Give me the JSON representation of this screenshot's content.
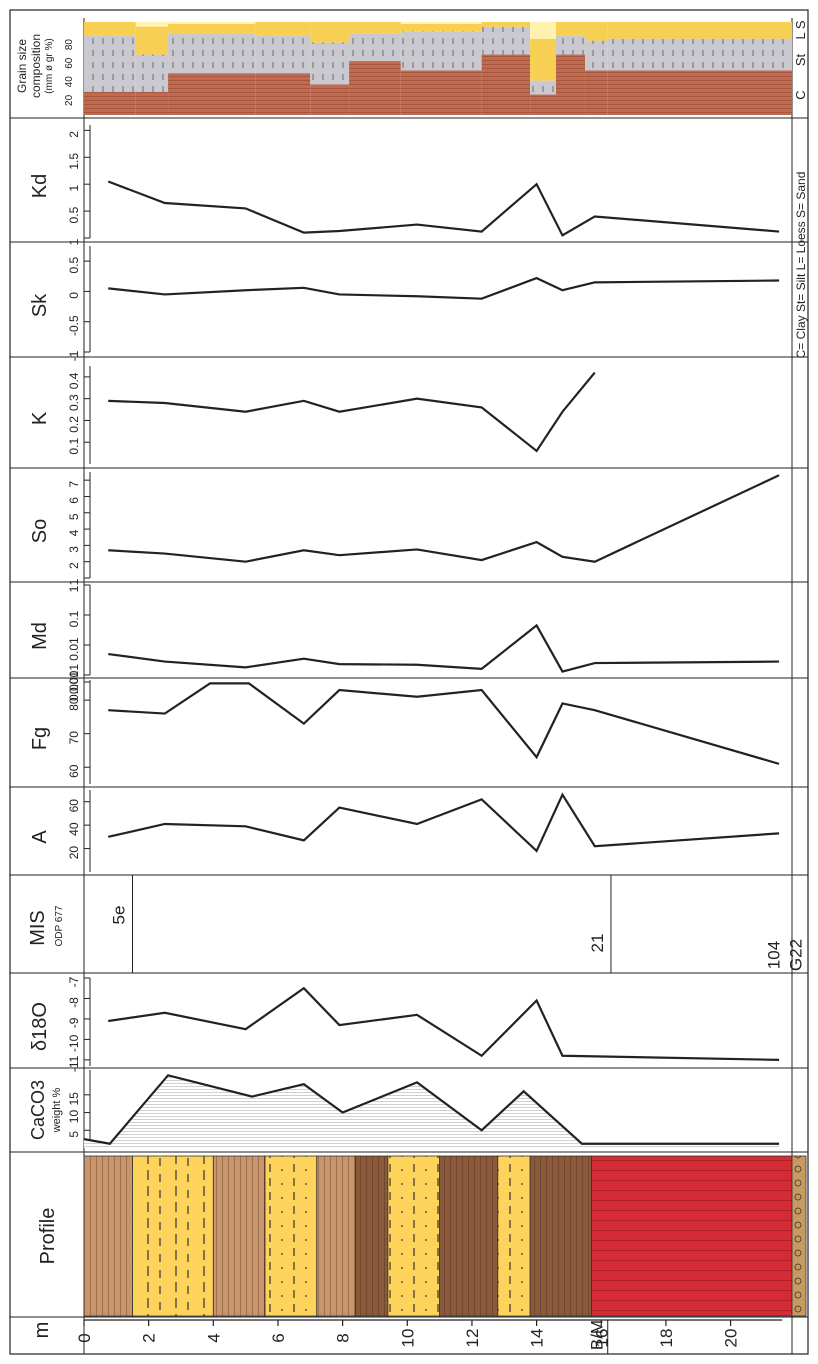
{
  "chart_data": {
    "type": "line",
    "title": "",
    "xlabel": "m",
    "depth_ticks": [
      "0",
      "2",
      "4",
      "6",
      "8",
      "10",
      "12",
      "14",
      "16",
      "18",
      "20"
    ],
    "bm_label": "B/M",
    "panels": [
      {
        "id": "kd",
        "label": "Kd",
        "ticks": [
          "2",
          "1.5",
          "1",
          "0.5",
          "1"
        ],
        "x": [
          0.75,
          2.5,
          5,
          6.8,
          7.9,
          10.3,
          12.3,
          14,
          14.8,
          15.8,
          21.5
        ],
        "y": [
          1.05,
          0.65,
          0.55,
          0.1,
          0.13,
          0.25,
          0.12,
          1.0,
          0.05,
          0.4,
          0.12
        ]
      },
      {
        "id": "sk",
        "label": "Sk",
        "ticks": [
          "0.5",
          "0",
          "-0.5",
          "-1"
        ],
        "x": [
          0.75,
          2.5,
          5,
          6.8,
          7.9,
          10.3,
          12.3,
          14,
          14.8,
          15.8,
          21.5
        ],
        "y": [
          0.05,
          -0.05,
          0.02,
          0.06,
          -0.05,
          -0.08,
          -0.12,
          0.22,
          0.02,
          0.15,
          0.18
        ]
      },
      {
        "id": "k",
        "label": "K",
        "ticks": [
          "0.1",
          "0.2",
          "0.3",
          "0.4"
        ],
        "x": [
          0.75,
          2.5,
          5,
          6.8,
          7.9,
          10.3,
          12.3,
          14,
          14.8,
          15.8
        ],
        "y": [
          0.29,
          0.28,
          0.24,
          0.29,
          0.24,
          0.3,
          0.26,
          0.06,
          0.24,
          0.42
        ]
      },
      {
        "id": "so",
        "label": "So",
        "ticks": [
          "1",
          "2",
          "3",
          "4",
          "5",
          "6",
          "7"
        ],
        "x": [
          0.75,
          2.5,
          5,
          6.8,
          7.9,
          10.3,
          12.3,
          14,
          14.8,
          15.8,
          21.5
        ],
        "y": [
          2.7,
          2.5,
          2.0,
          2.7,
          2.4,
          2.75,
          2.1,
          3.2,
          2.3,
          2.0,
          7.3
        ]
      },
      {
        "id": "md",
        "label": "Md",
        "ticks": [
          "0.001",
          "0.01",
          "0.1",
          "1"
        ],
        "x": [
          0.75,
          2.5,
          5,
          6.8,
          7.9,
          10.3,
          12.3,
          14,
          14.8,
          15.8,
          21.5
        ],
        "y": [
          0.005,
          0.0028,
          0.0018,
          0.0035,
          0.0023,
          0.0022,
          0.0016,
          0.045,
          0.0013,
          0.0025,
          0.0028
        ]
      },
      {
        "id": "fg",
        "label": "Fg",
        "ticks": [
          "60",
          "70",
          "80",
          "0.001"
        ],
        "x": [
          0.75,
          2.5,
          3.9,
          5.1,
          6.8,
          7.9,
          10.3,
          12.3,
          14,
          14.8,
          15.8,
          21.5
        ],
        "y": [
          77,
          76,
          85,
          85,
          73,
          83,
          81,
          83,
          63,
          79,
          77,
          61
        ]
      },
      {
        "id": "a",
        "label": "A",
        "ticks": [
          "20",
          "40",
          "60"
        ],
        "x": [
          0.75,
          2.5,
          5,
          6.8,
          7.9,
          10.3,
          12.3,
          14,
          14.8,
          15.8,
          21.5
        ],
        "y": [
          30,
          41,
          39,
          27,
          55,
          41,
          62,
          18,
          66,
          22,
          33
        ]
      },
      {
        "id": "mis",
        "label": "MIS",
        "sublabel": "ODP 677",
        "values": [
          "5e",
          "21",
          "104",
          "G22"
        ]
      },
      {
        "id": "d18o",
        "label": "δ18O",
        "ticks": [
          "-7",
          "-8",
          "-9",
          "-10",
          "-11"
        ],
        "x": [
          0.75,
          2.5,
          5,
          6.8,
          7.9,
          10.3,
          12.3,
          14,
          14.8,
          21.5
        ],
        "y": [
          -9.1,
          -8.7,
          -9.5,
          -7.5,
          -9.3,
          -8.8,
          -10.8,
          -8.1,
          -10.8,
          -11.0
        ]
      },
      {
        "id": "caco3",
        "label": "CaCO3",
        "sublabel": "weight %",
        "ticks": [
          "5",
          "10",
          "15"
        ],
        "x": [
          0,
          0.8,
          2.6,
          5.2,
          6.8,
          8,
          10.3,
          12.3,
          13.6,
          15.4,
          16.2,
          21.5
        ],
        "y": [
          2.5,
          1.2,
          20.5,
          14.5,
          18,
          10,
          18.5,
          5,
          16,
          1.2,
          1.2,
          1.2
        ]
      }
    ],
    "profile_label": "Profile",
    "grain": {
      "label": [
        "Grain size",
        "composition",
        "(mm ø gr %)"
      ],
      "ticks": [
        "20",
        "40",
        "60",
        "80"
      ],
      "legend_letters": [
        "C",
        "St",
        "L S"
      ],
      "legend_note": "C= Clay  St= Silt  L= Loess  S= Sand",
      "segments": [
        {
          "from": 0,
          "to": 1.6,
          "c": 25,
          "st": 60,
          "l": 15,
          "s": 0
        },
        {
          "from": 1.6,
          "to": 2.6,
          "c": 25,
          "st": 40,
          "l": 30,
          "s": 5
        },
        {
          "from": 2.6,
          "to": 5.3,
          "c": 45,
          "st": 42,
          "l": 11,
          "s": 2
        },
        {
          "from": 5.3,
          "to": 7,
          "c": 45,
          "st": 40,
          "l": 15,
          "s": 0
        },
        {
          "from": 7,
          "to": 8.2,
          "c": 33,
          "st": 45,
          "l": 22,
          "s": 0
        },
        {
          "from": 8.2,
          "to": 9.8,
          "c": 58,
          "st": 30,
          "l": 12,
          "s": 0
        },
        {
          "from": 9.8,
          "to": 12.3,
          "c": 48,
          "st": 42,
          "l": 8,
          "s": 2
        },
        {
          "from": 12.3,
          "to": 13.8,
          "c": 65,
          "st": 30,
          "l": 5,
          "s": 0
        },
        {
          "from": 13.8,
          "to": 14.6,
          "c": 22,
          "st": 15,
          "l": 45,
          "s": 18
        },
        {
          "from": 14.6,
          "to": 15.5,
          "c": 65,
          "st": 20,
          "l": 15,
          "s": 0
        },
        {
          "from": 15.5,
          "to": 16.2,
          "c": 48,
          "st": 32,
          "l": 20,
          "s": 0
        },
        {
          "from": 16.2,
          "to": 21.9,
          "c": 48,
          "st": 34,
          "l": 18,
          "s": 0
        }
      ]
    },
    "profile_layers": [
      {
        "from": 0,
        "to": 1.5,
        "kind": "hatch-brown"
      },
      {
        "from": 1.5,
        "to": 4,
        "kind": "dash-yellow"
      },
      {
        "from": 4,
        "to": 5.6,
        "kind": "hatch-brown"
      },
      {
        "from": 5.6,
        "to": 7.2,
        "kind": "dot-yellow"
      },
      {
        "from": 7.2,
        "to": 8.4,
        "kind": "hatch-brown"
      },
      {
        "from": 8.4,
        "to": 9.4,
        "kind": "dark-brown"
      },
      {
        "from": 9.4,
        "to": 11,
        "kind": "dot-yellow"
      },
      {
        "from": 11,
        "to": 12.8,
        "kind": "dark-brown"
      },
      {
        "from": 12.8,
        "to": 13.8,
        "kind": "dot-yellow"
      },
      {
        "from": 13.8,
        "to": 15.7,
        "kind": "dark-brown"
      },
      {
        "from": 15.7,
        "to": 21.9,
        "kind": "red"
      }
    ],
    "colors": {
      "line": "#222222",
      "brown": "#c9956c",
      "darkbrown": "#8a5a3a",
      "yellow": "#fdd35b",
      "red": "#d42b34",
      "clay": "#c06a50",
      "silt": "#c9c9cf",
      "loess": "#f7cf52",
      "gravel": "#c99a5f"
    }
  }
}
